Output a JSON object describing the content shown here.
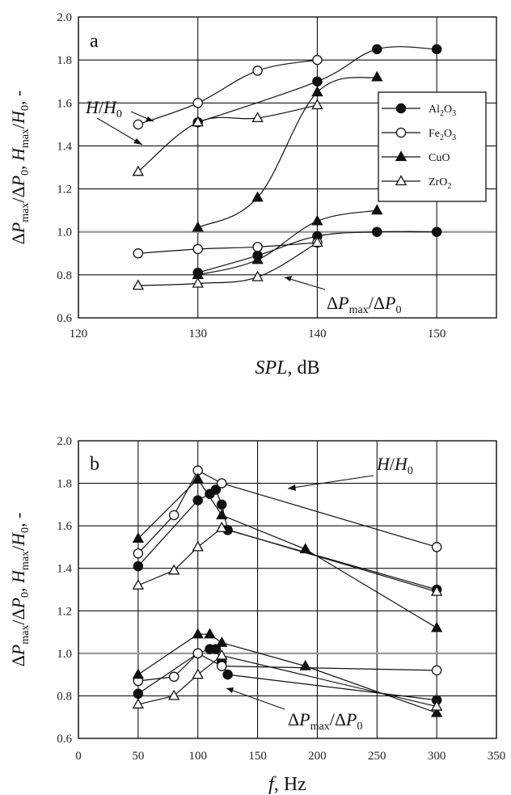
{
  "chart_data": [
    {
      "type": "line",
      "panel": "a",
      "xlabel_italic": "SPL",
      "xlabel_rest": ", dB",
      "ylabel": "ΔPmax/ΔP0, Hmax/H0, -",
      "xlim": [
        120,
        155
      ],
      "ylim": [
        0.6,
        2.0
      ],
      "xticks": [
        120,
        130,
        140,
        150
      ],
      "yticks": [
        "0.6",
        "0.8",
        "1.0",
        "1.2",
        "1.4",
        "1.6",
        "1.8",
        "2.0"
      ],
      "grid": true,
      "legend_position": "right",
      "legend": [
        "Al2O3",
        "Fe2O3",
        "CuO",
        "ZrO2"
      ],
      "annotations": [
        "H/H0",
        "ΔPmax/ΔP0"
      ],
      "series": [
        {
          "name": "Al2O3",
          "marker": "circle-filled",
          "group": "H",
          "points": [
            [
              130,
              1.51
            ],
            [
              140,
              1.7
            ],
            [
              145,
              1.85
            ],
            [
              150,
              1.85
            ]
          ]
        },
        {
          "name": "Fe2O3",
          "marker": "circle-open",
          "group": "H",
          "points": [
            [
              125,
              1.5
            ],
            [
              130,
              1.6
            ],
            [
              135,
              1.75
            ],
            [
              140,
              1.8
            ]
          ]
        },
        {
          "name": "CuO",
          "marker": "triangle-filled",
          "group": "H",
          "points": [
            [
              130,
              1.02
            ],
            [
              135,
              1.16
            ],
            [
              140,
              1.65
            ],
            [
              145,
              1.72
            ]
          ]
        },
        {
          "name": "ZrO2",
          "marker": "triangle-open",
          "group": "H",
          "points": [
            [
              125,
              1.28
            ],
            [
              130,
              1.51
            ],
            [
              135,
              1.53
            ],
            [
              140,
              1.59
            ]
          ]
        },
        {
          "name": "Al2O3",
          "marker": "circle-filled",
          "group": "P",
          "points": [
            [
              130,
              0.81
            ],
            [
              135,
              0.89
            ],
            [
              140,
              0.98
            ],
            [
              145,
              1.0
            ],
            [
              150,
              1.0
            ]
          ]
        },
        {
          "name": "Fe2O3",
          "marker": "circle-open",
          "group": "P",
          "points": [
            [
              125,
              0.9
            ],
            [
              130,
              0.92
            ],
            [
              135,
              0.93
            ],
            [
              140,
              0.95
            ]
          ]
        },
        {
          "name": "CuO",
          "marker": "triangle-filled",
          "group": "P",
          "points": [
            [
              130,
              0.8
            ],
            [
              135,
              0.87
            ],
            [
              140,
              1.05
            ],
            [
              145,
              1.1
            ]
          ]
        },
        {
          "name": "ZrO2",
          "marker": "triangle-open",
          "group": "P",
          "points": [
            [
              125,
              0.75
            ],
            [
              130,
              0.76
            ],
            [
              135,
              0.79
            ],
            [
              140,
              0.95
            ]
          ]
        }
      ]
    },
    {
      "type": "line",
      "panel": "b",
      "xlabel_italic": "f",
      "xlabel_rest": ", Hz",
      "ylabel": "ΔPmax/ΔP0, Hmax/H0, -",
      "xlim": [
        0,
        350
      ],
      "ylim": [
        0.6,
        2.0
      ],
      "xticks": [
        0,
        50,
        100,
        150,
        200,
        250,
        300,
        350
      ],
      "yticks": [
        "0.6",
        "0.8",
        "1.0",
        "1.2",
        "1.4",
        "1.6",
        "1.8",
        "2.0"
      ],
      "grid": true,
      "annotations": [
        "H/H0",
        "ΔPmax/ΔP0"
      ],
      "series": [
        {
          "name": "Al2O3",
          "marker": "circle-filled",
          "group": "H",
          "points": [
            [
              50,
              1.41
            ],
            [
              100,
              1.72
            ],
            [
              110,
              1.75
            ],
            [
              115,
              1.77
            ],
            [
              120,
              1.7
            ],
            [
              125,
              1.58
            ],
            [
              300,
              1.3
            ]
          ]
        },
        {
          "name": "Fe2O3",
          "marker": "circle-open",
          "group": "H",
          "points": [
            [
              50,
              1.47
            ],
            [
              80,
              1.65
            ],
            [
              100,
              1.86
            ],
            [
              120,
              1.8
            ],
            [
              300,
              1.5
            ]
          ]
        },
        {
          "name": "CuO",
          "marker": "triangle-filled",
          "group": "H",
          "points": [
            [
              50,
              1.54
            ],
            [
              100,
              1.82
            ],
            [
              120,
              1.65
            ],
            [
              190,
              1.49
            ],
            [
              300,
              1.12
            ]
          ]
        },
        {
          "name": "ZrO2",
          "marker": "triangle-open",
          "group": "H",
          "points": [
            [
              50,
              1.32
            ],
            [
              80,
              1.39
            ],
            [
              100,
              1.5
            ],
            [
              120,
              1.59
            ],
            [
              300,
              1.29
            ]
          ]
        },
        {
          "name": "Al2O3",
          "marker": "circle-filled",
          "group": "P",
          "points": [
            [
              50,
              0.81
            ],
            [
              100,
              1.0
            ],
            [
              110,
              1.02
            ],
            [
              115,
              1.02
            ],
            [
              120,
              0.96
            ],
            [
              125,
              0.9
            ],
            [
              300,
              0.78
            ]
          ]
        },
        {
          "name": "Fe2O3",
          "marker": "circle-open",
          "group": "P",
          "points": [
            [
              50,
              0.87
            ],
            [
              80,
              0.89
            ],
            [
              100,
              1.0
            ],
            [
              120,
              0.94
            ],
            [
              300,
              0.92
            ]
          ]
        },
        {
          "name": "CuO",
          "marker": "triangle-filled",
          "group": "P",
          "points": [
            [
              50,
              0.9
            ],
            [
              100,
              1.09
            ],
            [
              110,
              1.09
            ],
            [
              120,
              1.05
            ],
            [
              190,
              0.94
            ],
            [
              300,
              0.72
            ]
          ]
        },
        {
          "name": "ZrO2",
          "marker": "triangle-open",
          "group": "P",
          "points": [
            [
              50,
              0.76
            ],
            [
              80,
              0.8
            ],
            [
              100,
              0.9
            ],
            [
              120,
              0.99
            ],
            [
              300,
              0.75
            ]
          ]
        }
      ]
    }
  ]
}
